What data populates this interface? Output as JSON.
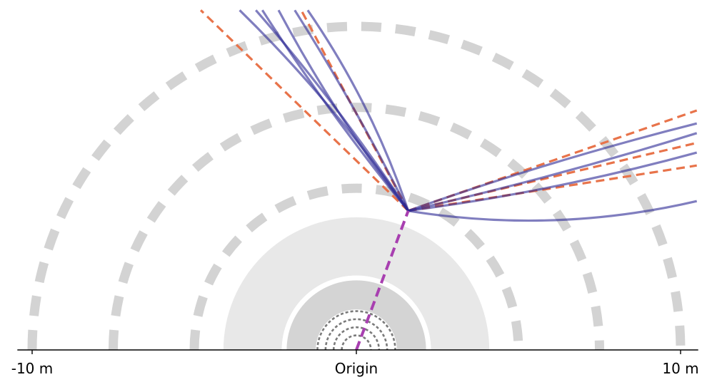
{
  "axis": {
    "tick_labels": [
      "-10 m",
      "Origin",
      "10 m"
    ],
    "tick_values_m": [
      -10,
      0,
      10
    ],
    "x_range_m": [
      -10.5,
      10.5
    ]
  },
  "colors": {
    "ring_dash": "#d3d3d3",
    "calorimeter_outer": "#e8e8e8",
    "calorimeter_inner": "#d4d4d4",
    "tracker_dash": "#7a7a7a",
    "incoming_track": "#a83fb0",
    "jet_track": "#2c2894",
    "jet_axis": "#e8734a",
    "axis_line": "#000000"
  },
  "detector": {
    "tracker_radii_m": [
      0.45,
      0.7,
      0.95,
      1.2
    ],
    "inner_calorimeter_m": [
      2.15,
      2.3
    ],
    "outer_calorimeter_m": [
      2.3,
      4.1
    ],
    "muon_chamber_radii_m": [
      5,
      7.5,
      10
    ]
  },
  "vertex": {
    "position_m": [
      1.6,
      4.3
    ]
  },
  "jets": [
    {
      "name_side": "upper",
      "axis_end_m": [
        [
          -4.8,
          10.5
        ],
        [
          -1.7,
          10.5
        ]
      ],
      "tracks_end_m": [
        [
          -3.6,
          10.5
        ],
        [
          -2.9,
          10.5
        ],
        [
          -1.9,
          10.5
        ],
        [
          -2.4,
          10.5
        ],
        [
          -3.1,
          10.5
        ],
        [
          -1.5,
          10.5
        ]
      ]
    },
    {
      "name_side": "right",
      "axis_end_m": [
        [
          10.5,
          7.4
        ],
        [
          10.5,
          6.4
        ],
        [
          10.5,
          5.7
        ]
      ],
      "tracks_end_m": [
        [
          10.5,
          7.0
        ],
        [
          10.5,
          6.7
        ],
        [
          10.5,
          6.1
        ],
        [
          10.5,
          4.6
        ]
      ]
    }
  ]
}
